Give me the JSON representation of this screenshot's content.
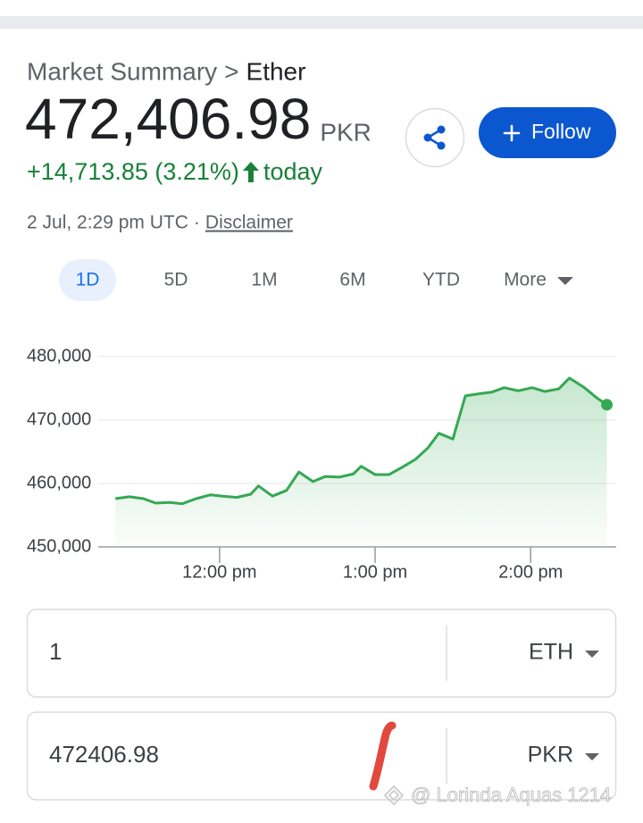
{
  "header": {
    "breadcrumb": [
      "Market Summary",
      "Ether"
    ],
    "breadcrumb_separator": ">",
    "price": "472,406.98",
    "currency": "PKR",
    "change": "+14,713.85 (3.21%)",
    "change_period": "today",
    "timestamp": "2 Jul, 2:29 pm UTC",
    "timestamp_separator": "·",
    "disclaimer": "Disclaimer",
    "follow_button": "Follow"
  },
  "tabs": [
    "1D",
    "5D",
    "1M",
    "6M",
    "YTD",
    "More"
  ],
  "active_tab": 0,
  "chart_data": {
    "type": "line",
    "color": "#34a853",
    "grid": true,
    "x": [
      11.33,
      11.42,
      11.51,
      11.59,
      11.68,
      11.76,
      11.85,
      11.94,
      12.02,
      12.11,
      12.2,
      12.25,
      12.34,
      12.43,
      12.51,
      12.6,
      12.68,
      12.77,
      12.86,
      12.91,
      13.0,
      13.09,
      13.17,
      13.26,
      13.34,
      13.41,
      13.5,
      13.58,
      13.66,
      13.75,
      13.83,
      13.92,
      14.01,
      14.09,
      14.18,
      14.25,
      14.34,
      14.43,
      14.49
    ],
    "values": [
      457600,
      457900,
      457600,
      456900,
      457000,
      456800,
      457600,
      458200,
      458000,
      457800,
      458300,
      459600,
      458000,
      458900,
      461800,
      460300,
      461100,
      461000,
      461500,
      462700,
      461400,
      461400,
      462500,
      463800,
      465600,
      467900,
      467000,
      473800,
      474100,
      474400,
      475100,
      474600,
      475100,
      474500,
      474900,
      476600,
      475200,
      473400,
      472406.98
    ],
    "xlim": [
      11.22,
      14.55
    ],
    "ylim": [
      450000,
      480000
    ],
    "xticks": [
      {
        "value": 12,
        "label": "12:00 pm"
      },
      {
        "value": 13,
        "label": "1:00 pm"
      },
      {
        "value": 14,
        "label": "2:00 pm"
      }
    ],
    "yticks": [
      {
        "value": 450000,
        "label": "450,000"
      },
      {
        "value": 460000,
        "label": "460,000"
      },
      {
        "value": 470000,
        "label": "470,000"
      },
      {
        "value": 480000,
        "label": "480,000"
      }
    ]
  },
  "converter": [
    {
      "amount": "1",
      "unit": "ETH"
    },
    {
      "amount": "472406.98",
      "unit": "PKR"
    }
  ],
  "watermark": "@ Lorinda Aquas 1214"
}
